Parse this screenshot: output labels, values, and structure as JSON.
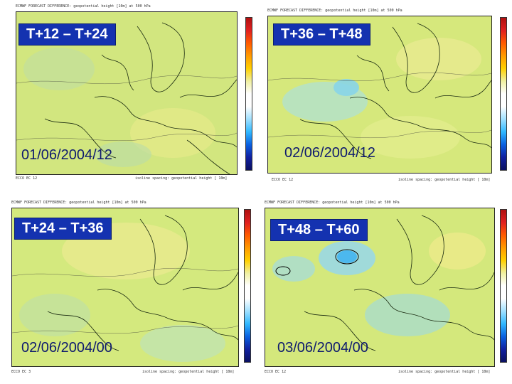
{
  "panels": [
    {
      "step_label": "T+12 – T+24",
      "date_label": "01/06/2004/12",
      "header": "ECMWF FORECAST DIFFERENCE: geopotential height [10m] at 500 hPa",
      "footer_left": "ECCO EC 12",
      "footer_right": "isoline spacing: geopotential height [ 10m]"
    },
    {
      "step_label": "T+36 – T+48",
      "date_label": "02/06/2004/12",
      "header": "ECMWF FORECAST DIFFERENCE: geopotential height [10m] at 500 hPa",
      "footer_left": "ECCO EC 12",
      "footer_right": "isoline spacing: geopotential height [ 10m]"
    },
    {
      "step_label": "T+24 – T+36",
      "date_label": "02/06/2004/00",
      "header": "ECMWF FORECAST DIFFERENCE: geopotential height [10m] at 500 hPa",
      "footer_left": "ECCO EC 3",
      "footer_right": "isoline spacing: geopotential height [ 10m]"
    },
    {
      "step_label": "T+48 – T+60",
      "date_label": "03/06/2004/00",
      "header": "ECMWF FORECAST DIFFERENCE: geopotential height [10m] at 500 hPa",
      "footer_left": "ECCO EC 12",
      "footer_right": "isoline spacing: geopotential height [ 10m]"
    }
  ],
  "colors": {
    "label_bg": "#1432b0",
    "label_text": "#ffffff",
    "date_text": "#0e1a6e",
    "field_base": "#d6e87a",
    "land_line": "#1a2a10"
  }
}
